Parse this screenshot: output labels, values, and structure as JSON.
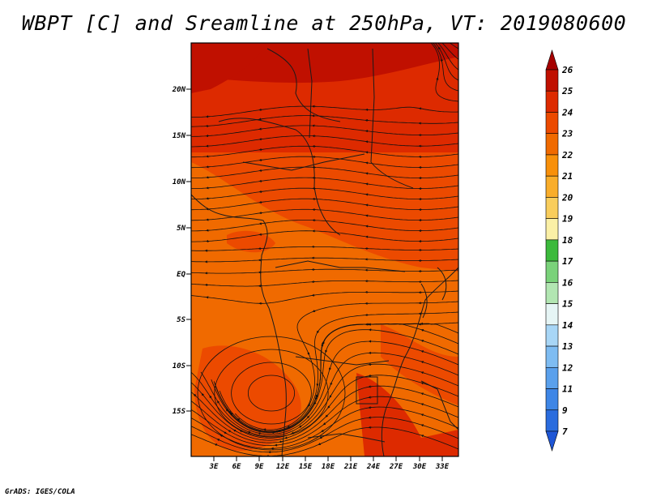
{
  "title": "WBPT [C] and Sreamline at 250hPa, VT: 2019080600",
  "credit": "GrADS: IGES/COLA",
  "map": {
    "lat_labels": [
      "20N",
      "15N",
      "10N",
      "5N",
      "EQ",
      "5S",
      "10S",
      "15S"
    ],
    "lon_labels": [
      "3E",
      "6E",
      "9E",
      "12E",
      "15E",
      "18E",
      "21E",
      "24E",
      "27E",
      "30E",
      "33E"
    ]
  },
  "colorbar": {
    "labels": [
      "26",
      "25",
      "24",
      "23",
      "22",
      "21",
      "20",
      "19",
      "18",
      "17",
      "16",
      "15",
      "14",
      "13",
      "12",
      "11",
      "9",
      "7"
    ],
    "colors": [
      "#a50000",
      "#c01000",
      "#dd2a00",
      "#ec4a00",
      "#f06a00",
      "#f8900a",
      "#f9ad2a",
      "#f9cd5c",
      "#fbf0a6",
      "#3cba3c",
      "#7ad27a",
      "#b2e6b2",
      "#e6f5f5",
      "#a8d6f6",
      "#7ebcf2",
      "#5aa0ec",
      "#3e86e6",
      "#2a6cde",
      "#1e56d6"
    ]
  }
}
